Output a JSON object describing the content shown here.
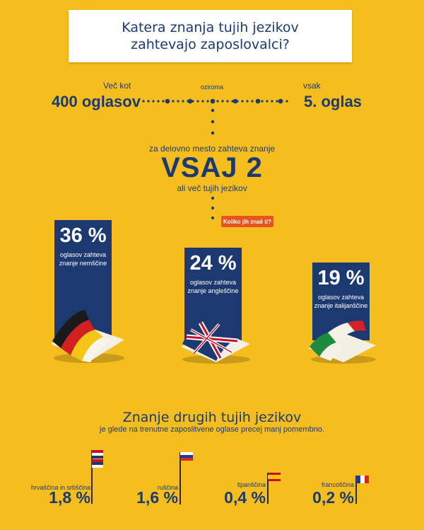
{
  "title": {
    "line1": "Katera znanja tujih jezikov",
    "line2": "zahtevajo zaposlovalci?"
  },
  "left": {
    "label": "Več kot",
    "value": "400 oglasov"
  },
  "middle": {
    "label": "oziroma"
  },
  "right": {
    "label": "vsak",
    "value": "5. oglas"
  },
  "requirement": {
    "line1": "za delovno mesto zahteva znanje",
    "main": "VSAJ 2",
    "line3": "ali več tujih jezikov"
  },
  "badge": {
    "label": "Koliko jih znaš ti?"
  },
  "chart_data": {
    "type": "bar",
    "categories": [
      "nemščine",
      "angleščine",
      "italijanščine"
    ],
    "values": [
      36,
      24,
      19
    ],
    "value_labels": [
      "36 %",
      "24 %",
      "19 %"
    ],
    "descriptions": [
      {
        "line1": "oglasov zahteva",
        "line2": "znanje nemščine"
      },
      {
        "line1": "oglasov zahteva",
        "line2": "znanje angleščine"
      },
      {
        "line1": "oglasov zahteva",
        "line2": "znanje italijanščine"
      }
    ],
    "colors": {
      "bar": "#1D3A70",
      "background": "#F6BD1E"
    }
  },
  "other": {
    "title": "Znanje drugih tujih jezikov",
    "subtitle": "je glede na trenutne zaposlitvene oglase precej manj pomembno.",
    "languages": [
      {
        "label": "hrvaščina in srbščina",
        "value": "1,8 %",
        "flag": "croatia-serbia-flag-icon"
      },
      {
        "label": "ruščina",
        "value": "1,6 %",
        "flag": "russia-flag-icon"
      },
      {
        "label": "španščina",
        "value": "0,4 %",
        "flag": "spain-flag-icon"
      },
      {
        "label": "francoščina",
        "value": "0,2 %",
        "flag": "france-flag-icon"
      }
    ]
  },
  "colors": {
    "navy": "#1D3A70",
    "yellow": "#F6BD1E",
    "orange": "#E8531E"
  }
}
